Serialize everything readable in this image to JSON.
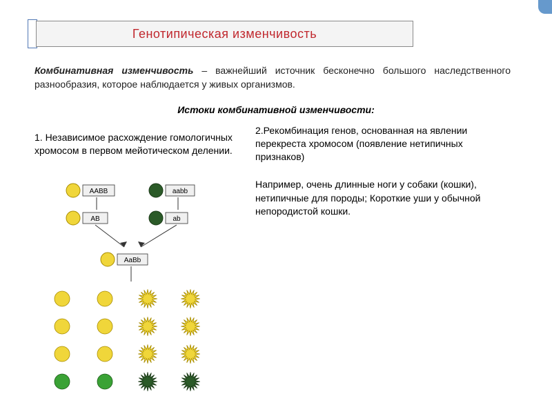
{
  "title": {
    "text": "Генотипическая  изменчивость",
    "color": "#c0272d"
  },
  "intro": {
    "bold": "Комбинативная изменчивость",
    "rest": " – важнейший источник бесконечно большого наследственного разнообразия, которое наблюдается у живых организмов."
  },
  "subtitle": "Истоки комбинативной изменчивости:",
  "point1": "1. Независимое расхождение гомологичных хромосом в первом мейотическом делении.",
  "point2": "2.Рекомбинация генов, основанная на явлении перекреста хромосом (появление нетипичных признаков)",
  "example": "Например, очень длинные ноги у собаки (кошки), нетипичные для породы; Короткие уши у обычной непородистой кошки.",
  "diagram": {
    "labels": {
      "p1": "AABB",
      "p2": "aabb",
      "g1": "AB",
      "g2": "ab",
      "f1": "AaBb"
    },
    "colors": {
      "yellow_smooth": {
        "fill": "#f0d63a",
        "stroke": "#a88c00"
      },
      "green_smooth": {
        "fill": "#3aa235",
        "stroke": "#1c5a18"
      },
      "yellow_rough": {
        "fill": "#f0d63a",
        "stroke": "#a88c00"
      },
      "green_rough": {
        "fill": "#2b5a28",
        "stroke": "#1c3a18"
      },
      "box_bg": "#f0f0f0",
      "box_stroke": "#333333",
      "line": "#333333"
    },
    "grid": [
      [
        "yellow_smooth",
        "yellow_smooth",
        "yellow_rough",
        "yellow_rough"
      ],
      [
        "yellow_smooth",
        "yellow_smooth",
        "yellow_rough",
        "yellow_rough"
      ],
      [
        "yellow_smooth",
        "yellow_smooth",
        "yellow_rough",
        "yellow_rough"
      ],
      [
        "green_smooth",
        "green_smooth",
        "green_rough",
        "green_rough"
      ]
    ]
  },
  "text_color": "#222222"
}
